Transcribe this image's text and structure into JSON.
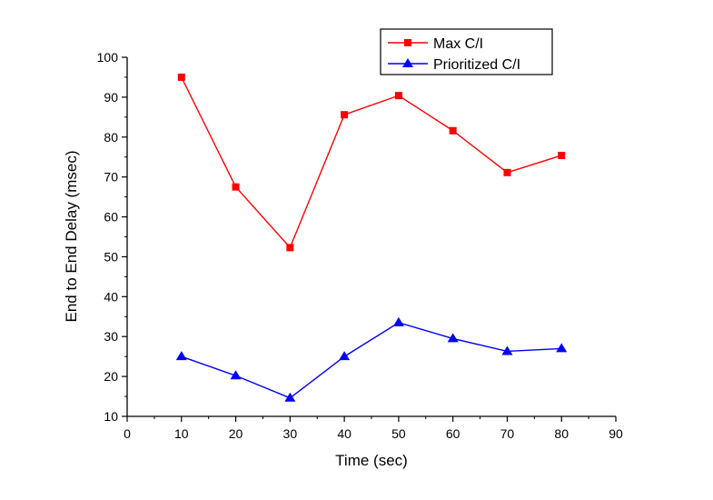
{
  "chart_data": {
    "type": "line",
    "title": "",
    "xlabel": "Time (sec)",
    "ylabel": "End to End Delay (msec)",
    "xlim": [
      0,
      90
    ],
    "ylim": [
      10,
      100
    ],
    "xticks": [
      0,
      10,
      20,
      30,
      40,
      50,
      60,
      70,
      80,
      90
    ],
    "yticks": [
      10,
      20,
      30,
      40,
      50,
      60,
      70,
      80,
      90,
      100
    ],
    "grid": false,
    "legend_position": "top-right",
    "series": [
      {
        "name": "Max C/I",
        "color": "#ff0000",
        "marker": "square",
        "x": [
          10,
          20,
          30,
          40,
          50,
          60,
          70,
          80
        ],
        "values": [
          95,
          67.5,
          52.3,
          85.6,
          90.4,
          81.6,
          71.1,
          75.4
        ]
      },
      {
        "name": "Prioritized C/I",
        "color": "#0000ff",
        "marker": "triangle",
        "x": [
          10,
          20,
          30,
          40,
          50,
          60,
          70,
          80
        ],
        "values": [
          25,
          20.2,
          14.6,
          25,
          33.5,
          29.5,
          26.3,
          27
        ]
      }
    ]
  }
}
